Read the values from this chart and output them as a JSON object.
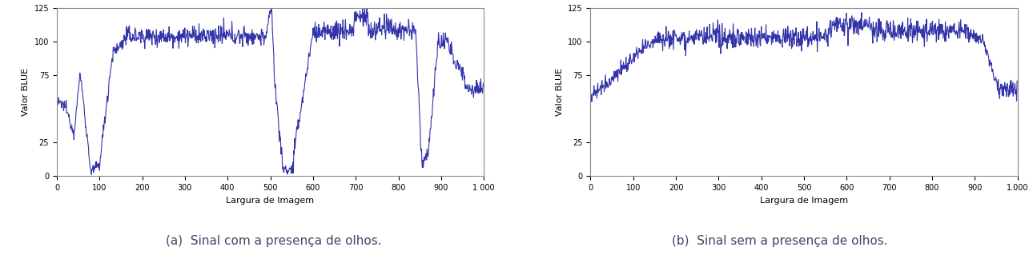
{
  "line_color": "#3333aa",
  "line_width": 0.8,
  "ylabel": "Valor BLUE",
  "xlabel": "Largura de Imagem",
  "caption_a": "(a)  Sinal com a presença de olhos.",
  "caption_b": "(b)  Sinal sem a presença de olhos.",
  "xlim": [
    0,
    1000
  ],
  "ylim": [
    0,
    125
  ],
  "yticks": [
    0,
    25,
    75,
    100,
    125
  ],
  "xticks": [
    0,
    100,
    200,
    300,
    400,
    500,
    600,
    700,
    800,
    900,
    1000
  ],
  "xtick_labels_a": [
    "0",
    "100",
    "200",
    "300",
    "400",
    "500",
    "600",
    "700",
    "800",
    "900",
    "1 000"
  ],
  "xtick_labels_b": [
    "0",
    "100",
    "200",
    "300",
    "400",
    "500",
    "600",
    "700",
    "800",
    "900",
    "1.000"
  ],
  "bg_color": "#ffffff",
  "font_size": 7,
  "caption_font_size": 11,
  "caption_color": "#444466"
}
